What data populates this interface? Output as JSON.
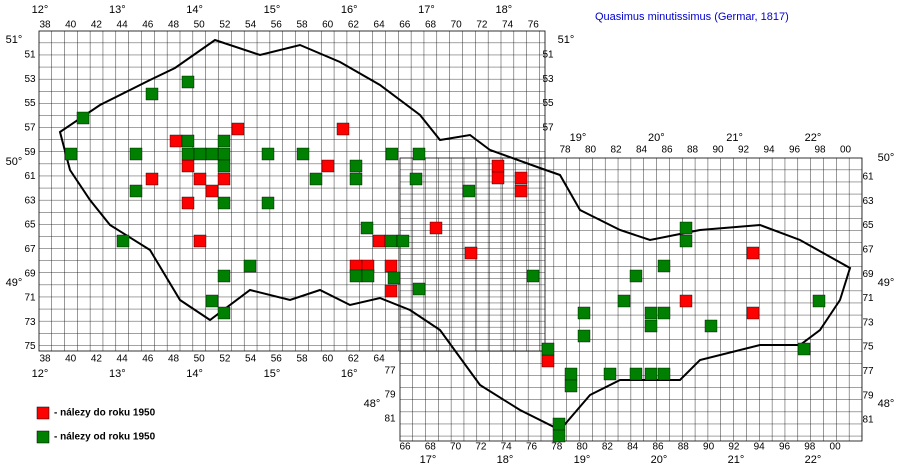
{
  "title": "Quasimus minutissimus (Germar, 1817)",
  "legend": [
    "- nálezy do roku 1950",
    "- nálezy od roku 1950"
  ],
  "top_degrees_west": [
    "12°",
    "13°",
    "14°",
    "15°",
    "16°",
    "17°",
    "18°"
  ],
  "top_columns_west": [
    "38",
    "40",
    "42",
    "44",
    "46",
    "48",
    "50",
    "52",
    "54",
    "56",
    "58",
    "60",
    "62",
    "64",
    "66",
    "68",
    "70",
    "72",
    "74",
    "76"
  ],
  "top_degrees_east": [
    "19°",
    "20°",
    "21°",
    "22°"
  ],
  "top_columns_east": [
    "78",
    "80",
    "82",
    "84",
    "86",
    "88",
    "90",
    "92",
    "94",
    "96",
    "98",
    "00"
  ],
  "left_rows_west": [
    "51",
    "53",
    "55",
    "57",
    "59",
    "61",
    "63",
    "65",
    "67",
    "69",
    "71",
    "73",
    "75"
  ],
  "left_rows_east": [
    "77",
    "79",
    "81"
  ],
  "right_rows_west": [
    "51",
    "53",
    "55",
    "57"
  ],
  "right_rows_east": [
    "61",
    "63",
    "65",
    "67",
    "69",
    "71",
    "73",
    "75",
    "77",
    "79",
    "81"
  ],
  "left_degrees": [
    "51°",
    "50°",
    "49°",
    "48°"
  ],
  "right_degrees": [
    "51°",
    "50°",
    "49°",
    "48°"
  ],
  "bottom_columns_west": [
    "38",
    "40",
    "42",
    "44",
    "46",
    "48",
    "50",
    "52",
    "54",
    "56",
    "58",
    "60",
    "62",
    "64"
  ],
  "bottom_degrees_west": [
    "12°",
    "13°",
    "14°",
    "15°",
    "16°"
  ],
  "bottom_columns_east": [
    "66",
    "68",
    "70",
    "72",
    "74",
    "76",
    "78",
    "80",
    "82",
    "84",
    "86",
    "88",
    "90",
    "92",
    "94",
    "96",
    "98",
    "00"
  ],
  "bottom_degrees_east": [
    "17°",
    "18°",
    "19°",
    "20°",
    "21°",
    "22°"
  ]
}
